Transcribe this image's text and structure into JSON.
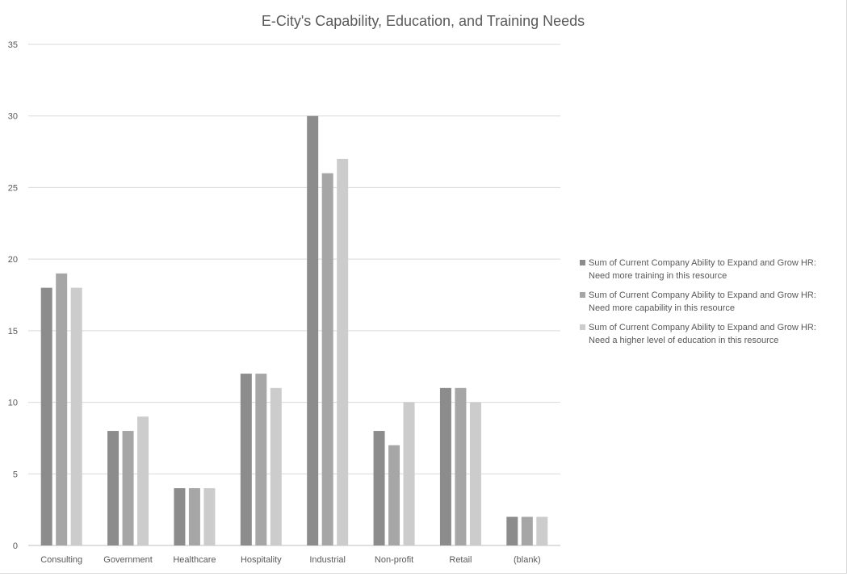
{
  "chart_data": {
    "type": "bar",
    "title": "E-City's Capability, Education, and Training Needs",
    "xlabel": "",
    "ylabel": "",
    "ylim": [
      0,
      35
    ],
    "yticks": [
      0,
      5,
      10,
      15,
      20,
      25,
      30,
      35
    ],
    "grid": true,
    "legend_position": "right",
    "categories": [
      "Consulting",
      "Government",
      "Healthcare",
      "Hospitality",
      "Industrial",
      "Non-profit",
      "Retail",
      "(blank)"
    ],
    "series": [
      {
        "name": "Sum of Current Company Ability to Expand and Grow HR:\nNeed more training in this resource",
        "color": "#8c8c8c",
        "values": [
          18,
          8,
          4,
          12,
          30,
          8,
          11,
          2
        ]
      },
      {
        "name": "Sum of Current Company Ability to Expand and Grow HR:\nNeed more capability in this resource",
        "color": "#a6a6a6",
        "values": [
          19,
          8,
          4,
          12,
          26,
          7,
          11,
          2
        ]
      },
      {
        "name": "Sum of Current Company Ability to Expand and Grow HR:\nNeed a higher level of education in this resource",
        "color": "#cccccc",
        "values": [
          18,
          9,
          4,
          11,
          27,
          10,
          10,
          2
        ]
      }
    ]
  }
}
